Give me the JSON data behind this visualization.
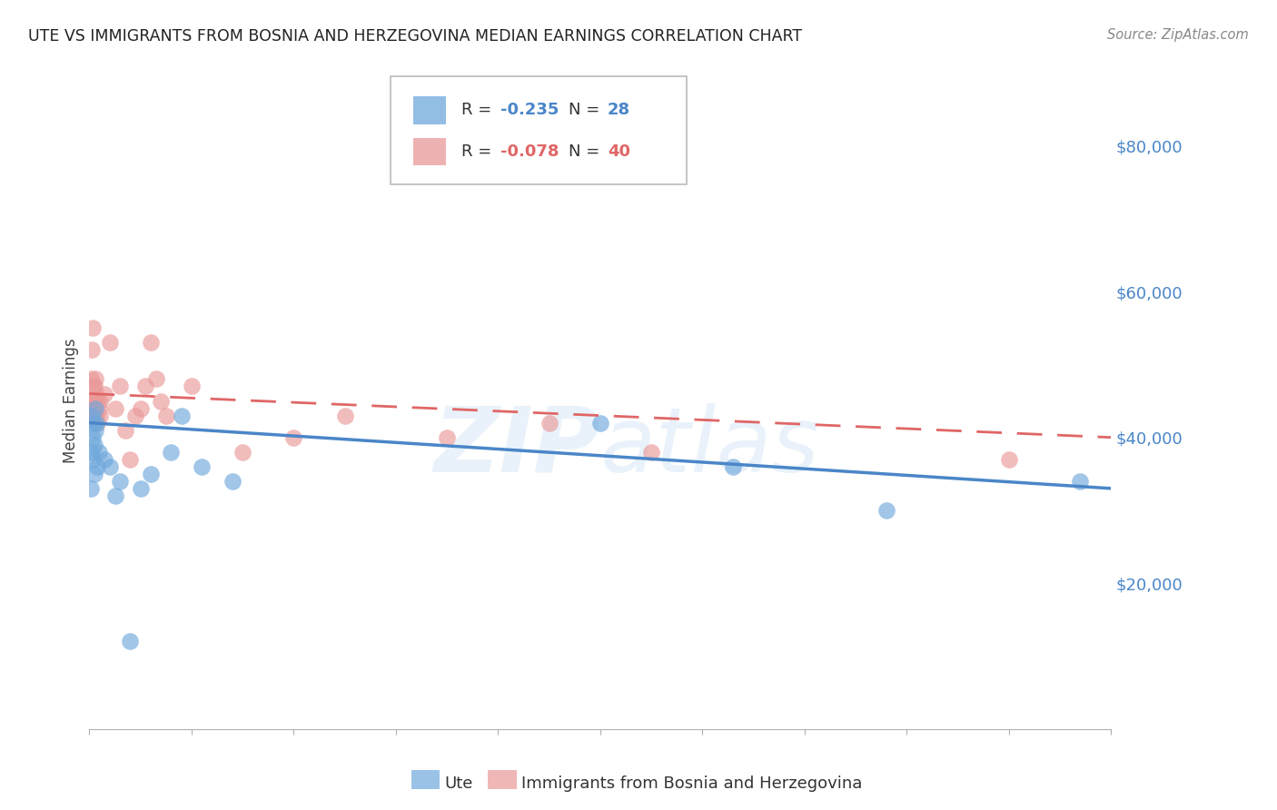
{
  "title": "UTE VS IMMIGRANTS FROM BOSNIA AND HERZEGOVINA MEDIAN EARNINGS CORRELATION CHART",
  "source": "Source: ZipAtlas.com",
  "ylabel": "Median Earnings",
  "watermark": "ZIPatlas",
  "ute_R": -0.235,
  "ute_N": 28,
  "bh_R": -0.078,
  "bh_N": 40,
  "ute_color": "#6fa8dc",
  "bh_color": "#ea9999",
  "ute_line_color": "#4a86c8",
  "bh_line_color": "#e06666",
  "ytick_labels": [
    "$20,000",
    "$40,000",
    "$60,000",
    "$80,000"
  ],
  "ytick_values": [
    20000,
    40000,
    60000,
    80000
  ],
  "ylim": [
    0,
    90000
  ],
  "xlim": [
    0.0,
    1.0
  ],
  "ute_x": [
    0.001,
    0.002,
    0.002,
    0.003,
    0.003,
    0.004,
    0.005,
    0.005,
    0.006,
    0.006,
    0.007,
    0.008,
    0.009,
    0.015,
    0.02,
    0.025,
    0.03,
    0.04,
    0.05,
    0.06,
    0.08,
    0.09,
    0.11,
    0.14,
    0.5,
    0.63,
    0.78,
    0.97
  ],
  "ute_y": [
    33000,
    38000,
    43000,
    37000,
    40000,
    42000,
    39000,
    35000,
    41000,
    44000,
    42000,
    36000,
    38000,
    37000,
    36000,
    32000,
    34000,
    12000,
    33000,
    35000,
    38000,
    43000,
    36000,
    34000,
    42000,
    36000,
    30000,
    34000
  ],
  "bh_x": [
    0.001,
    0.001,
    0.002,
    0.002,
    0.003,
    0.003,
    0.004,
    0.004,
    0.005,
    0.005,
    0.006,
    0.006,
    0.007,
    0.007,
    0.008,
    0.008,
    0.009,
    0.01,
    0.01,
    0.015,
    0.02,
    0.025,
    0.03,
    0.035,
    0.04,
    0.045,
    0.05,
    0.055,
    0.06,
    0.065,
    0.07,
    0.075,
    0.1,
    0.15,
    0.2,
    0.25,
    0.35,
    0.45,
    0.55,
    0.9
  ],
  "bh_y": [
    45000,
    48000,
    44000,
    52000,
    43000,
    55000,
    47000,
    44000,
    45000,
    47000,
    43000,
    48000,
    43000,
    46000,
    42000,
    45000,
    44000,
    43000,
    45000,
    46000,
    53000,
    44000,
    47000,
    41000,
    37000,
    43000,
    44000,
    47000,
    53000,
    48000,
    45000,
    43000,
    47000,
    38000,
    40000,
    43000,
    40000,
    42000,
    38000,
    37000
  ],
  "ute_line_x0": 0.0,
  "ute_line_x1": 1.0,
  "ute_line_y0": 42000,
  "ute_line_y1": 33000,
  "bh_line_x0": 0.0,
  "bh_line_x1": 1.0,
  "bh_line_y0": 46000,
  "bh_line_y1": 40000
}
